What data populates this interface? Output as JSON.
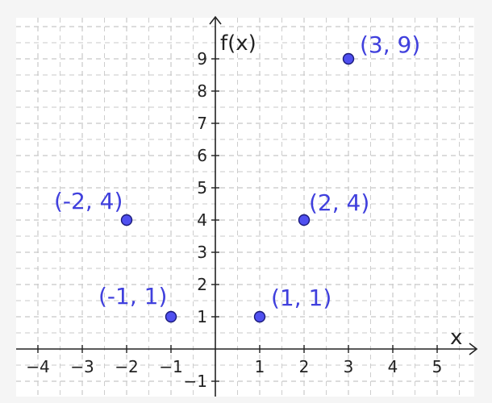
{
  "chart_data": {
    "type": "scatter",
    "title": "",
    "xlabel": "x",
    "ylabel": "f(x)",
    "xlim": [
      -4.4,
      5.75
    ],
    "ylim": [
      -1.3,
      10.2
    ],
    "grid": true,
    "x_ticks": [
      -4,
      -3,
      -2,
      -1,
      1,
      2,
      3,
      4,
      5
    ],
    "x_tick_labels": [
      "−4",
      "−3",
      "−2",
      "−1",
      "1",
      "2",
      "3",
      "4",
      "5"
    ],
    "y_ticks": [
      -1,
      1,
      2,
      3,
      4,
      5,
      6,
      7,
      8,
      9
    ],
    "y_tick_labels": [
      "−1",
      "1",
      "2",
      "3",
      "4",
      "5",
      "6",
      "7",
      "8",
      "9"
    ],
    "points": [
      {
        "x": -2,
        "y": 4,
        "label": "(-2, 4)"
      },
      {
        "x": -1,
        "y": 1,
        "label": "(-1, 1)"
      },
      {
        "x": 1,
        "y": 1,
        "label": "(1, 1)"
      },
      {
        "x": 2,
        "y": 4,
        "label": "(2, 4)"
      },
      {
        "x": 3,
        "y": 9,
        "label": "(3, 9)"
      }
    ],
    "colors": {
      "point_fill": "#5050f0",
      "point_stroke": "#1a1a7a",
      "label": "#4040dd",
      "grid": "#c8c8c8",
      "axis": "#222222",
      "plot_background": "#ffffff"
    }
  }
}
